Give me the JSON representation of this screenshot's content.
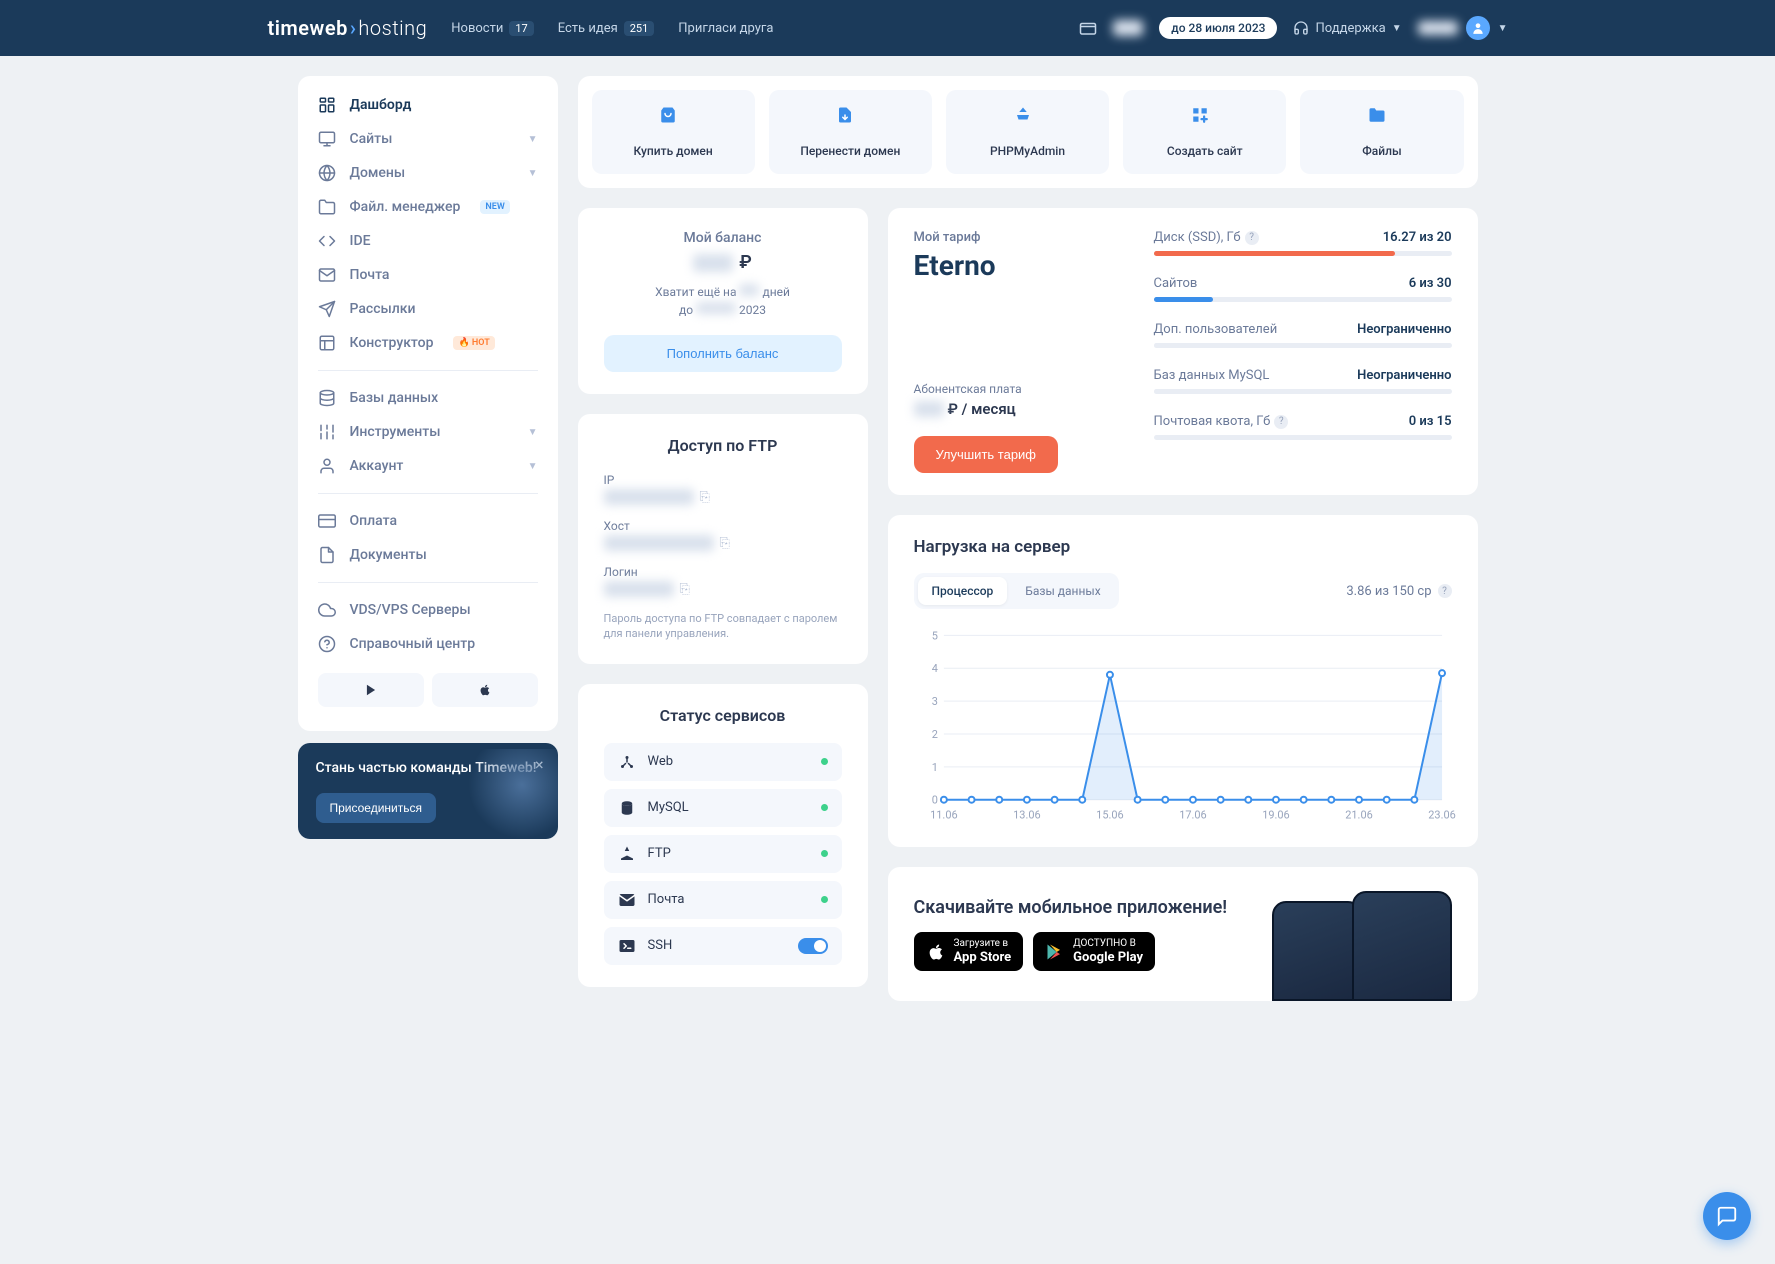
{
  "header": {
    "logo_main": "timeweb",
    "logo_sub": "hosting",
    "news_label": "Новости",
    "news_count": "17",
    "idea_label": "Есть идея",
    "idea_count": "251",
    "invite_label": "Пригласи друга",
    "expiry_label": "до 28 июля 2023",
    "support_label": "Поддержка"
  },
  "sidebar": {
    "items": [
      {
        "label": "Дашборд",
        "icon": "dashboard"
      },
      {
        "label": "Сайты",
        "icon": "monitor",
        "chevron": true
      },
      {
        "label": "Домены",
        "icon": "globe",
        "chevron": true
      },
      {
        "label": "Файл. менеджер",
        "icon": "folder",
        "tag": "NEW"
      },
      {
        "label": "IDE",
        "icon": "code"
      },
      {
        "label": "Почта",
        "icon": "mail"
      },
      {
        "label": "Рассылки",
        "icon": "send"
      },
      {
        "label": "Конструктор",
        "icon": "layout",
        "tag": "HOT"
      }
    ],
    "items2": [
      {
        "label": "Базы данных",
        "icon": "database"
      },
      {
        "label": "Инструменты",
        "icon": "sliders",
        "chevron": true
      },
      {
        "label": "Аккаунт",
        "icon": "user",
        "chevron": true
      }
    ],
    "items3": [
      {
        "label": "Оплата",
        "icon": "card"
      },
      {
        "label": "Документы",
        "icon": "doc"
      }
    ],
    "items4": [
      {
        "label": "VDS/VPS Серверы",
        "icon": "cloud"
      },
      {
        "label": "Справочный центр",
        "icon": "help"
      }
    ]
  },
  "promo": {
    "title": "Стань частью команды Timeweb!",
    "button": "Присоединиться"
  },
  "quick_actions": [
    {
      "label": "Купить домен",
      "icon": "bag"
    },
    {
      "label": "Перенести домен",
      "icon": "filemove"
    },
    {
      "label": "PHPMyAdmin",
      "icon": "boat"
    },
    {
      "label": "Создать сайт",
      "icon": "grid"
    },
    {
      "label": "Файлы",
      "icon": "folder2"
    }
  ],
  "balance": {
    "title": "Мой баланс",
    "ruble": "₽",
    "info1": "Хватит ещё на",
    "info2": "дней",
    "info3": "до",
    "info4": "2023",
    "button": "Пополнить баланс"
  },
  "ftp": {
    "title": "Доступ по FTP",
    "ip_label": "IP",
    "host_label": "Хост",
    "login_label": "Логин",
    "note": "Пароль доступа по FTP совпадает с паролем для панели управления."
  },
  "status": {
    "title": "Статус сервисов",
    "items": [
      {
        "label": "Web",
        "icon": "web"
      },
      {
        "label": "MySQL",
        "icon": "db"
      },
      {
        "label": "FTP",
        "icon": "ftp"
      },
      {
        "label": "Почта",
        "icon": "mail2"
      },
      {
        "label": "SSH",
        "icon": "ssh",
        "toggle": true
      }
    ]
  },
  "tariff": {
    "title": "Мой тариф",
    "name": "Eterno",
    "fee_label": "Абонентская плата",
    "fee_suffix": "₽ / месяц",
    "button": "Улучшить тариф",
    "usage": [
      {
        "label": "Диск (SSD), Гб",
        "value": "16.27 из 20",
        "percent": 81,
        "color": "#f26a4c",
        "help": true
      },
      {
        "label": "Сайтов",
        "value": "6 из 30",
        "percent": 20,
        "color": "#3a8eea"
      },
      {
        "label": "Доп. пользователей",
        "value": "Неограниченно",
        "percent": 2,
        "color": "#e9edf4"
      },
      {
        "label": "Баз данных MySQL",
        "value": "Неограниченно",
        "percent": 2,
        "color": "#e9edf4"
      },
      {
        "label": "Почтовая квота, Гб",
        "value": "0 из 15",
        "percent": 0,
        "color": "#e9edf4",
        "help": true
      }
    ]
  },
  "server": {
    "title": "Нагрузка на сервер",
    "tab1": "Процессор",
    "tab2": "Базы данных",
    "cpu_info": "3.86 из 150 cp",
    "chart": {
      "y_max": 5,
      "y_ticks": [
        0,
        1,
        2,
        3,
        4,
        5
      ],
      "x_labels": [
        "11.06",
        "13.06",
        "15.06",
        "17.06",
        "19.06",
        "21.06",
        "23.06"
      ],
      "values": [
        0,
        0,
        0,
        0,
        0,
        0,
        3.8,
        0,
        0,
        0,
        0,
        0,
        0,
        0,
        0,
        0,
        0,
        0,
        3.85
      ],
      "line_color": "#3a8eea",
      "grid_color": "#e9edf4",
      "fill_color": "rgba(58,142,234,0.15)"
    }
  },
  "app_promo": {
    "title": "Скачивайте мобильное приложение!",
    "appstore_top": "Загрузите в",
    "appstore_bottom": "App Store",
    "playstore_top": "ДОСТУПНО В",
    "playstore_bottom": "Google Play"
  }
}
